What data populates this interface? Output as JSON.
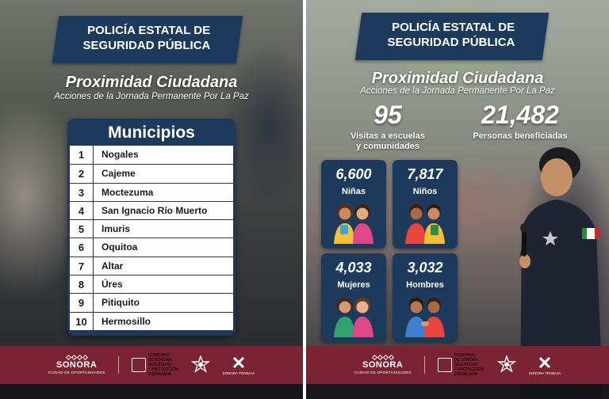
{
  "left_panel": {
    "header_line1": "POLICÍA ESTATAL DE",
    "header_line2": "SEGURIDAD PÚBLICA",
    "headline": "Proximidad Ciudadana",
    "subline": "Acciones de la Jornada Permanente Por La Paz",
    "municipios": {
      "title": "Municipios",
      "rows": [
        {
          "num": "1",
          "name": "Nogales"
        },
        {
          "num": "2",
          "name": "Cajeme"
        },
        {
          "num": "3",
          "name": "Moctezuma"
        },
        {
          "num": "4",
          "name": "San Ignacio Río Muerto"
        },
        {
          "num": "5",
          "name": "Imuris"
        },
        {
          "num": "6",
          "name": "Oquitoa"
        },
        {
          "num": "7",
          "name": "Altar"
        },
        {
          "num": "8",
          "name": "Úres"
        },
        {
          "num": "9",
          "name": "Pitiquito"
        },
        {
          "num": "10",
          "name": "Hermosillo"
        }
      ]
    }
  },
  "right_panel": {
    "header_line1": "POLICÍA ESTATAL DE",
    "header_line2": "SEGURIDAD PÚBLICA",
    "headline": "Proximidad Ciudadana",
    "subline": "Acciones de la Jornada Permanente Por La Paz",
    "visits": {
      "value": "95",
      "label_line1": "Visitas a escuelas",
      "label_line2": "y comunidades"
    },
    "beneficiaries": {
      "value": "21,482",
      "label": "Personas beneficiadas"
    },
    "cards": [
      {
        "value": "6,600",
        "label": "Niñas"
      },
      {
        "value": "7,817",
        "label": "Niños"
      },
      {
        "value": "4,033",
        "label": "Mujeres"
      },
      {
        "value": "3,032",
        "label": "Hombres"
      }
    ]
  },
  "footer": {
    "sonora": "SONORA",
    "sonora_sub": "CIUDAD DE OPORTUNIDADES",
    "gov_line1": "GOBIERNO",
    "gov_line2": "DE SONORA",
    "ssp_line1": "SEGURIDAD",
    "ssp_line2": "Y PROTECCIÓN",
    "ssp_line3": "CIUDADANA",
    "x_sub": "SONORA TRABAJA"
  },
  "colors": {
    "navy": "#1d3a5c",
    "maroon": "#7b2334"
  },
  "icons": [
    "police-star-icon",
    "kids-illustration",
    "sonora-x-icon"
  ]
}
